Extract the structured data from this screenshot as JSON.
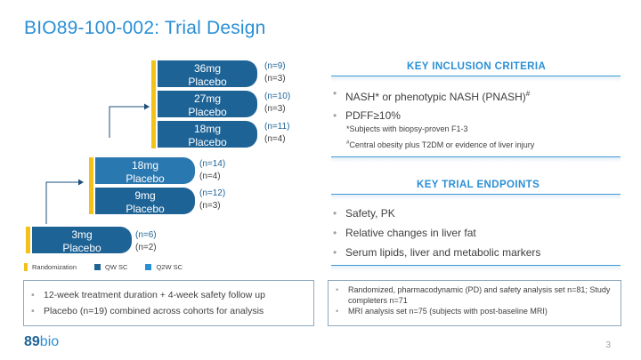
{
  "title": "BIO89-100-002: Trial Design",
  "colors": {
    "accent": "#2a8fd6",
    "qw": "#1e6396",
    "q2w": "#2a78b0",
    "randomization": "#f2c21b"
  },
  "arms": [
    {
      "dose": "36mg",
      "placebo": "Placebo",
      "n_dose": "(n=9)",
      "n_placebo": "(n=3)"
    },
    {
      "dose": "27mg",
      "placebo": "Placebo",
      "n_dose": "(n=10)",
      "n_placebo": "(n=3)"
    },
    {
      "dose": "18mg",
      "placebo": "Placebo",
      "n_dose": "(n=11)",
      "n_placebo": "(n=4)"
    },
    {
      "dose": "18mg",
      "placebo": "Placebo",
      "n_dose": "(n=14)",
      "n_placebo": "(n=4)"
    },
    {
      "dose": "9mg",
      "placebo": "Placebo",
      "n_dose": "(n=12)",
      "n_placebo": "(n=3)"
    },
    {
      "dose": "3mg",
      "placebo": "Placebo",
      "n_dose": "(n=6)",
      "n_placebo": "(n=2)"
    }
  ],
  "legend": {
    "randomization": "Randomization",
    "qw": "QW SC",
    "q2w": "Q2W SC"
  },
  "inclusion": {
    "heading": "KEY INCLUSION CRITERIA",
    "items": [
      "NASH* or phenotypic NASH (PNASH)",
      "PDFF≥10%"
    ],
    "superscript": "#",
    "footnote1": "*Subjects with biopsy-proven F1-3",
    "footnote2_mark": "#",
    "footnote2": "Central obesity plus T2DM or evidence of liver injury"
  },
  "endpoints": {
    "heading": "KEY TRIAL ENDPOINTS",
    "items": [
      "Safety, PK",
      "Relative changes in liver fat",
      "Serum lipids, liver and metabolic markers"
    ]
  },
  "left_box": {
    "items": [
      "12-week treatment duration + 4-week safety follow up",
      "Placebo (n=19) combined across cohorts for analysis"
    ]
  },
  "right_box": {
    "items": [
      "Randomized, pharmacodynamic (PD) and safety analysis set  n=81; Study completers  n=71",
      "MRI analysis set n=75 (subjects with post-baseline MRI)"
    ]
  },
  "logo": {
    "part1": "89",
    "part2": "bio"
  },
  "page_number": "3"
}
